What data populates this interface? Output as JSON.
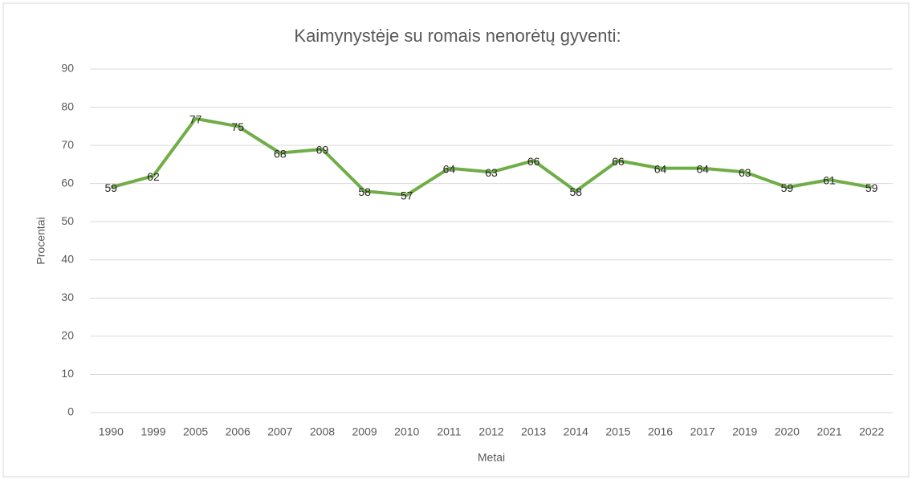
{
  "chart_data": {
    "type": "line",
    "title": "Kaimynystėje su romais nenorėtų gyventi:",
    "x_label": "Metai",
    "y_label": "Procentai",
    "categories": [
      "1990",
      "1999",
      "2005",
      "2006",
      "2007",
      "2008",
      "2009",
      "2010",
      "2011",
      "2012",
      "2013",
      "2014",
      "2015",
      "2016",
      "2017",
      "2019",
      "2020",
      "2021",
      "2022"
    ],
    "series": [
      {
        "name": "Procentai",
        "color": "#70ad47",
        "values": [
          59,
          62,
          77,
          75,
          68,
          69,
          58,
          57,
          64,
          63,
          66,
          58,
          66,
          64,
          64,
          63,
          59,
          61,
          59
        ]
      }
    ],
    "ylim": [
      0,
      90
    ],
    "yticks": [
      0,
      10,
      20,
      30,
      40,
      50,
      60,
      70,
      80,
      90
    ],
    "grid": true,
    "data_labels": true
  }
}
